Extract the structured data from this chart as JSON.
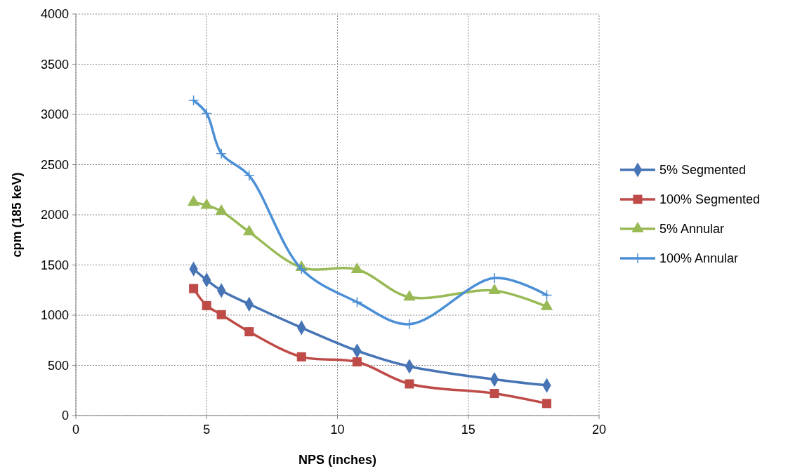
{
  "chart_data": {
    "type": "line",
    "xlabel": "NPS (inches)",
    "ylabel": "cpm (185 keV)",
    "xlim": [
      0,
      20
    ],
    "xticks": [
      0,
      5,
      10,
      15,
      20
    ],
    "ylim": [
      0,
      4000
    ],
    "yticks": [
      0,
      500,
      1000,
      1500,
      2000,
      2500,
      3000,
      3500,
      4000
    ],
    "grid": true,
    "legend": "right",
    "x": [
      4.5,
      5,
      5.5625,
      6.625,
      8.625,
      10.75,
      12.75,
      16,
      18
    ],
    "series": [
      {
        "name": "5% Segmented",
        "color": "#4674b5",
        "marker": "diamond",
        "values": [
          1460,
          1350,
          1245,
          1110,
          875,
          645,
          490,
          360,
          300
        ]
      },
      {
        "name": "100% Segmented",
        "color": "#be4b48",
        "marker": "square",
        "values": [
          1265,
          1095,
          1005,
          835,
          585,
          535,
          315,
          220,
          120
        ]
      },
      {
        "name": "5% Annular",
        "color": "#98b954",
        "marker": "triangle",
        "values": [
          2125,
          2095,
          2035,
          1830,
          1475,
          1455,
          1180,
          1245,
          1085
        ]
      },
      {
        "name": "100% Annular",
        "color": "#4a8fd6",
        "marker": "cross",
        "values": [
          3140,
          3010,
          2610,
          2390,
          1460,
          1130,
          910,
          1370,
          1200
        ]
      }
    ]
  }
}
